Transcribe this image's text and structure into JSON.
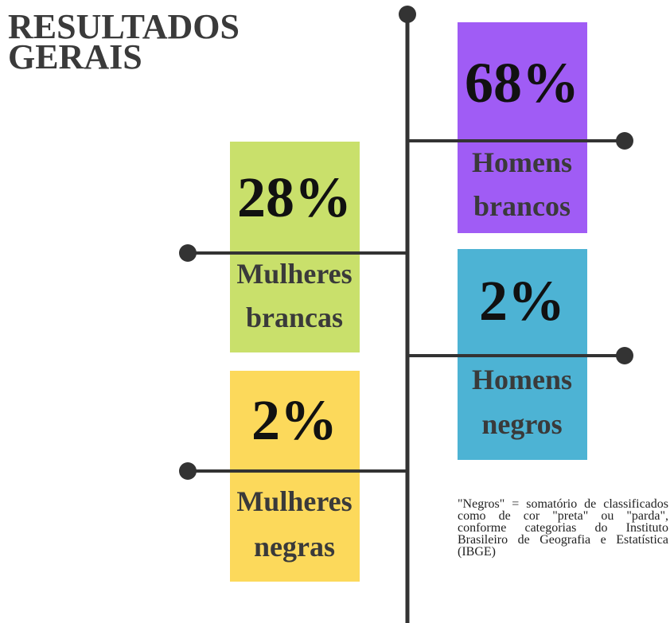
{
  "title": [
    "RESULTADOS",
    "GERAIS"
  ],
  "items": [
    {
      "value": "68%",
      "label": [
        "Homens",
        "brancos"
      ]
    },
    {
      "value": "28%",
      "label": [
        "Mulheres",
        "brancas"
      ]
    },
    {
      "value": "2%",
      "label": [
        "Homens",
        "negros"
      ]
    },
    {
      "value": "2%",
      "label": [
        "Mulheres",
        "negras"
      ]
    }
  ],
  "note": "\"Negros\" = somatório de classificados como de cor \"preta\" ou \"parda\", conforme categorias do Instituto Brasileiro de Geografia e Estatística (IBGE)"
}
